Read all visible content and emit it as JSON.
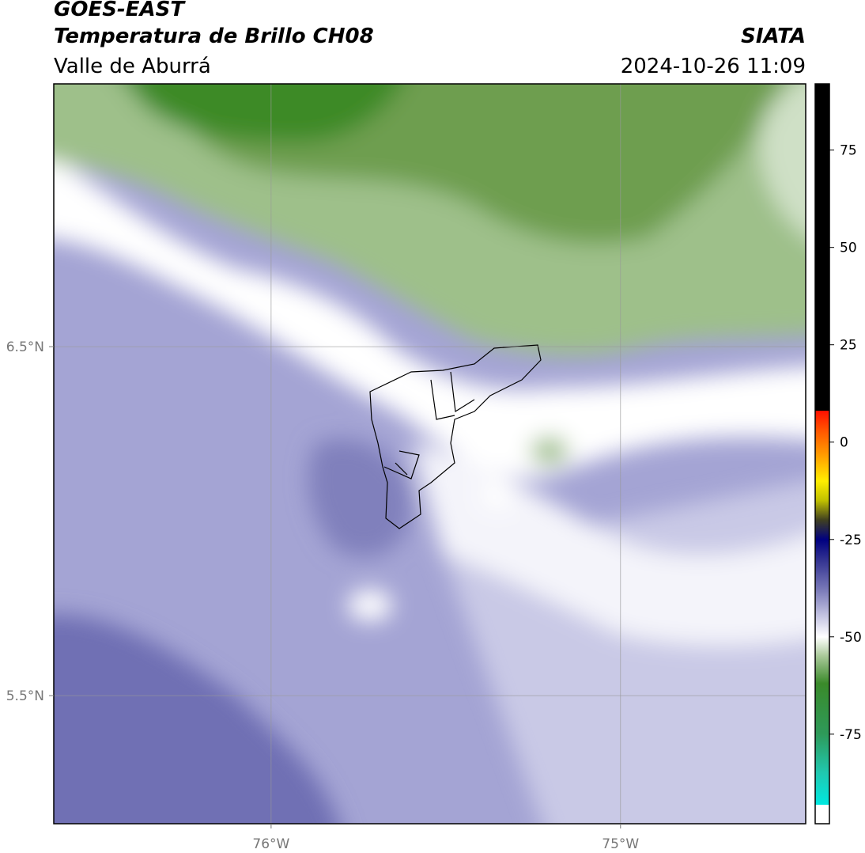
{
  "chart_data": {
    "type": "contour-map",
    "title": "GOES-EAST",
    "subtitle": "Temperatura de Brillo CH08",
    "region": "Valle de Aburrá",
    "source": "SIATA",
    "datetime": "2024-10-26 11:09",
    "xlim": [
      -76.622,
      -74.47
    ],
    "ylim": [
      5.133,
      7.253
    ],
    "xticks": [
      {
        "value": -76,
        "label": "76°W"
      },
      {
        "value": -75,
        "label": "75°W"
      }
    ],
    "yticks": [
      {
        "value": 5.5,
        "label": "5.5°N"
      },
      {
        "value": 6.5,
        "label": "6.5°N"
      }
    ],
    "grid": true,
    "colorbar": {
      "clim": [
        -98,
        92
      ],
      "ticks": [
        -75,
        -50,
        -25,
        0,
        25,
        50,
        75
      ],
      "color_stops": [
        {
          "value": -98,
          "color": "#ffffff"
        },
        {
          "value": -93.2,
          "color": "#ffffff"
        },
        {
          "value": -93.1,
          "color": "#00e8e0"
        },
        {
          "value": -85,
          "color": "#20c8b0"
        },
        {
          "value": -75,
          "color": "#2e9a5a"
        },
        {
          "value": -62,
          "color": "#3a8a2a"
        },
        {
          "value": -55,
          "color": "#a8c898"
        },
        {
          "value": -50,
          "color": "#ffffff"
        },
        {
          "value": -45,
          "color": "#c8c8e4"
        },
        {
          "value": -38,
          "color": "#7a7ab8"
        },
        {
          "value": -30,
          "color": "#303090"
        },
        {
          "value": -25,
          "color": "#000080"
        },
        {
          "value": -20,
          "color": "#404020"
        },
        {
          "value": -15,
          "color": "#c0c000"
        },
        {
          "value": -10,
          "color": "#ffee00"
        },
        {
          "value": -3,
          "color": "#ff9900"
        },
        {
          "value": 3,
          "color": "#ff5500"
        },
        {
          "value": 8,
          "color": "#ff1100"
        },
        {
          "value": 8.1,
          "color": "#000000"
        },
        {
          "value": 92,
          "color": "#000000"
        }
      ]
    }
  }
}
